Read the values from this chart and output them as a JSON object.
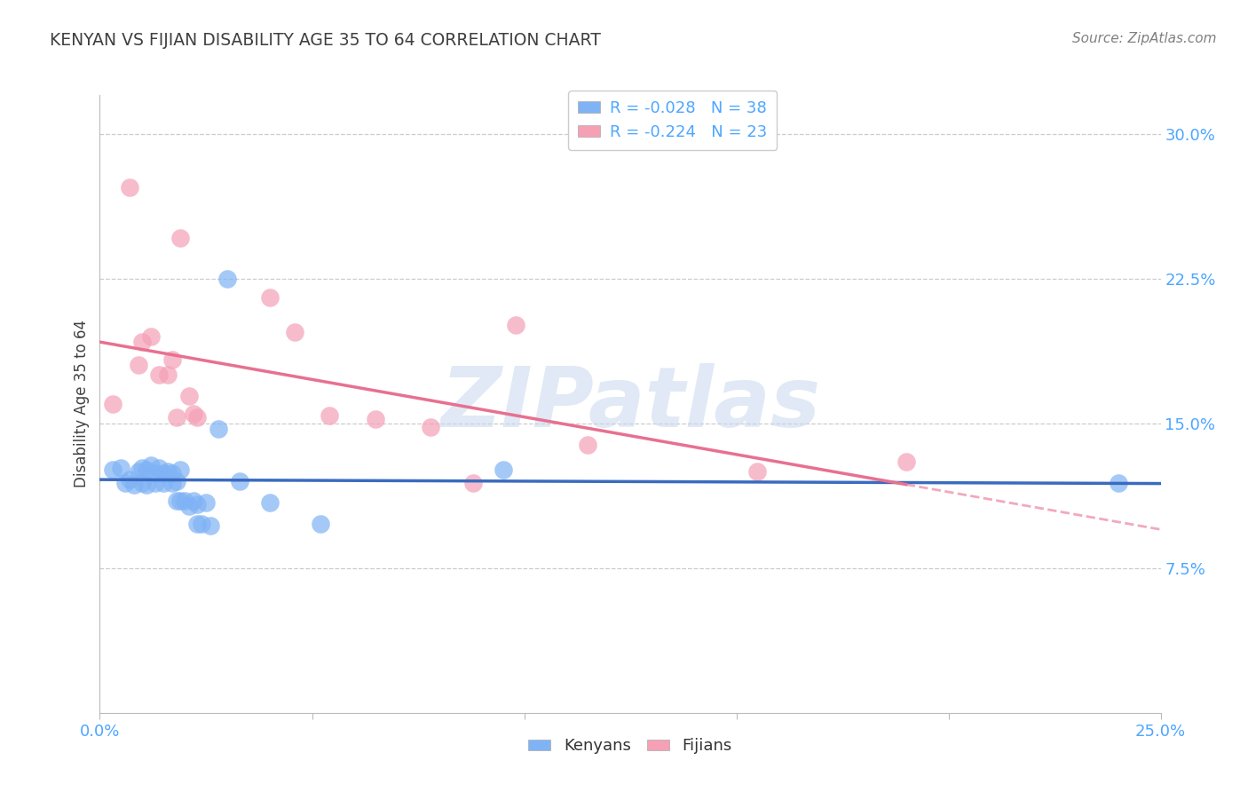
{
  "title": "KENYAN VS FIJIAN DISABILITY AGE 35 TO 64 CORRELATION CHART",
  "source": "Source: ZipAtlas.com",
  "ylabel": "Disability Age 35 to 64",
  "xlim": [
    0.0,
    0.25
  ],
  "ylim": [
    0.0,
    0.32
  ],
  "background_color": "#ffffff",
  "grid_color": "#cccccc",
  "kenyan_scatter_x": [
    0.003,
    0.005,
    0.006,
    0.007,
    0.008,
    0.009,
    0.01,
    0.01,
    0.011,
    0.011,
    0.012,
    0.013,
    0.013,
    0.014,
    0.015,
    0.015,
    0.016,
    0.017,
    0.017,
    0.018,
    0.018,
    0.019,
    0.019,
    0.02,
    0.021,
    0.022,
    0.023,
    0.023,
    0.024,
    0.025,
    0.026,
    0.028,
    0.03,
    0.033,
    0.04,
    0.052,
    0.095,
    0.24
  ],
  "kenyan_scatter_y": [
    0.126,
    0.127,
    0.119,
    0.121,
    0.118,
    0.125,
    0.127,
    0.119,
    0.118,
    0.126,
    0.128,
    0.119,
    0.124,
    0.127,
    0.119,
    0.124,
    0.125,
    0.119,
    0.124,
    0.11,
    0.12,
    0.11,
    0.126,
    0.11,
    0.107,
    0.11,
    0.098,
    0.108,
    0.098,
    0.109,
    0.097,
    0.147,
    0.225,
    0.12,
    0.109,
    0.098,
    0.126,
    0.119
  ],
  "fijian_scatter_x": [
    0.003,
    0.007,
    0.009,
    0.01,
    0.012,
    0.014,
    0.016,
    0.017,
    0.018,
    0.019,
    0.021,
    0.022,
    0.023,
    0.04,
    0.046,
    0.054,
    0.065,
    0.078,
    0.088,
    0.098,
    0.115,
    0.155,
    0.19
  ],
  "fijian_scatter_y": [
    0.16,
    0.272,
    0.18,
    0.192,
    0.195,
    0.175,
    0.175,
    0.183,
    0.153,
    0.246,
    0.164,
    0.155,
    0.153,
    0.215,
    0.197,
    0.154,
    0.152,
    0.148,
    0.119,
    0.201,
    0.139,
    0.125,
    0.13
  ],
  "kenyan_line_color": "#3a6bbf",
  "fijian_line_color": "#e87090",
  "scatter_blue": "#7fb3f5",
  "scatter_pink": "#f5a0b5",
  "title_color": "#404040",
  "axis_label_color": "#4da6ff",
  "source_color": "#808080",
  "watermark_text": "ZIPatlas",
  "r_kenyan": "-0.028",
  "n_kenyan": "38",
  "r_fijian": "-0.224",
  "n_fijian": "23",
  "legend_r_color": "#e87090",
  "legend_n_color": "#4da6ff"
}
